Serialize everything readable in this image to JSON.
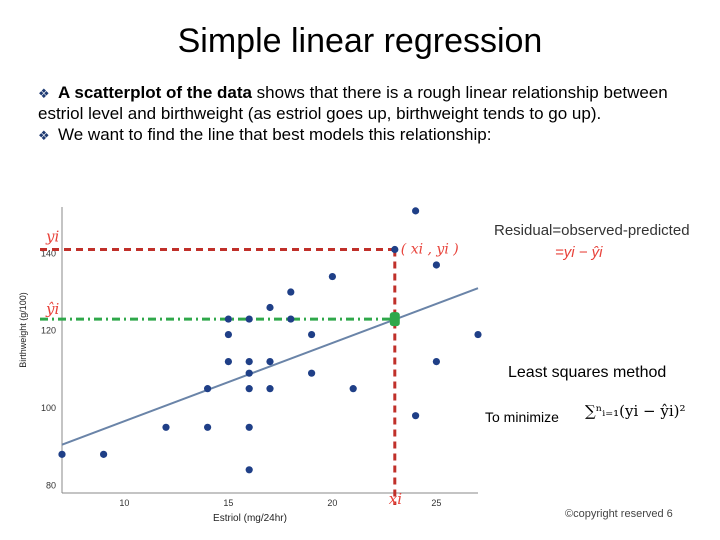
{
  "slide": {
    "title": "Simple linear regression",
    "bullet1_bold": "A scatterplot of the data",
    "bullet1_rest": " shows that there is a rough linear relationship between estriol level and birthweight (as estriol goes up, birthweight tends to go up).",
    "bullet2": "We want to find the line that best models this relationship:",
    "residual_label": "Residual=observed-predicted",
    "residual_formula": "=yi − ŷi",
    "least_squares": "Least squares method",
    "minimize": "To minimize",
    "sum_formula": "∑ⁿᵢ₌₁(yi − ŷi)²",
    "copyright": "©copyright reserved 6",
    "colors": {
      "points": "#1f3f87",
      "line": "#6a84a8",
      "observed_guide": "#c0302a",
      "predicted_guide": "#2fa84a",
      "annotation": "#e8423a"
    }
  },
  "chart_data": {
    "type": "scatter",
    "xlabel": "Estriol (mg/24hr)",
    "ylabel": "Birthweight (g/100)",
    "x_ticks": [
      "10",
      "15",
      "20",
      "25"
    ],
    "y_ticks": [
      "80",
      "100",
      "120",
      "140"
    ],
    "xlim": [
      7,
      27
    ],
    "ylim": [
      78,
      152
    ],
    "points": [
      {
        "x": 7,
        "y": 88
      },
      {
        "x": 9,
        "y": 88
      },
      {
        "x": 12,
        "y": 95
      },
      {
        "x": 14,
        "y": 95
      },
      {
        "x": 14,
        "y": 105
      },
      {
        "x": 15,
        "y": 112
      },
      {
        "x": 15,
        "y": 119
      },
      {
        "x": 15,
        "y": 123
      },
      {
        "x": 16,
        "y": 84
      },
      {
        "x": 16,
        "y": 95
      },
      {
        "x": 16,
        "y": 105
      },
      {
        "x": 16,
        "y": 109
      },
      {
        "x": 16,
        "y": 112
      },
      {
        "x": 16,
        "y": 123
      },
      {
        "x": 17,
        "y": 105
      },
      {
        "x": 17,
        "y": 112
      },
      {
        "x": 17,
        "y": 126
      },
      {
        "x": 18,
        "y": 123
      },
      {
        "x": 18,
        "y": 130
      },
      {
        "x": 19,
        "y": 109
      },
      {
        "x": 19,
        "y": 119
      },
      {
        "x": 20,
        "y": 134
      },
      {
        "x": 21,
        "y": 105
      },
      {
        "x": 23,
        "y": 141
      },
      {
        "x": 24,
        "y": 98
      },
      {
        "x": 24,
        "y": 151
      },
      {
        "x": 25,
        "y": 112
      },
      {
        "x": 25,
        "y": 137
      },
      {
        "x": 27,
        "y": 119
      }
    ],
    "regression_line": {
      "x": [
        7,
        27
      ],
      "y": [
        90.5,
        131.0
      ]
    },
    "highlight": {
      "x": 23,
      "y_observed": 141,
      "y_predicted": 123
    },
    "annotations": {
      "point_label": "( xi , yi )",
      "y_obs_label": "yi",
      "y_hat_label": "ŷi",
      "x_label": "xi"
    }
  }
}
